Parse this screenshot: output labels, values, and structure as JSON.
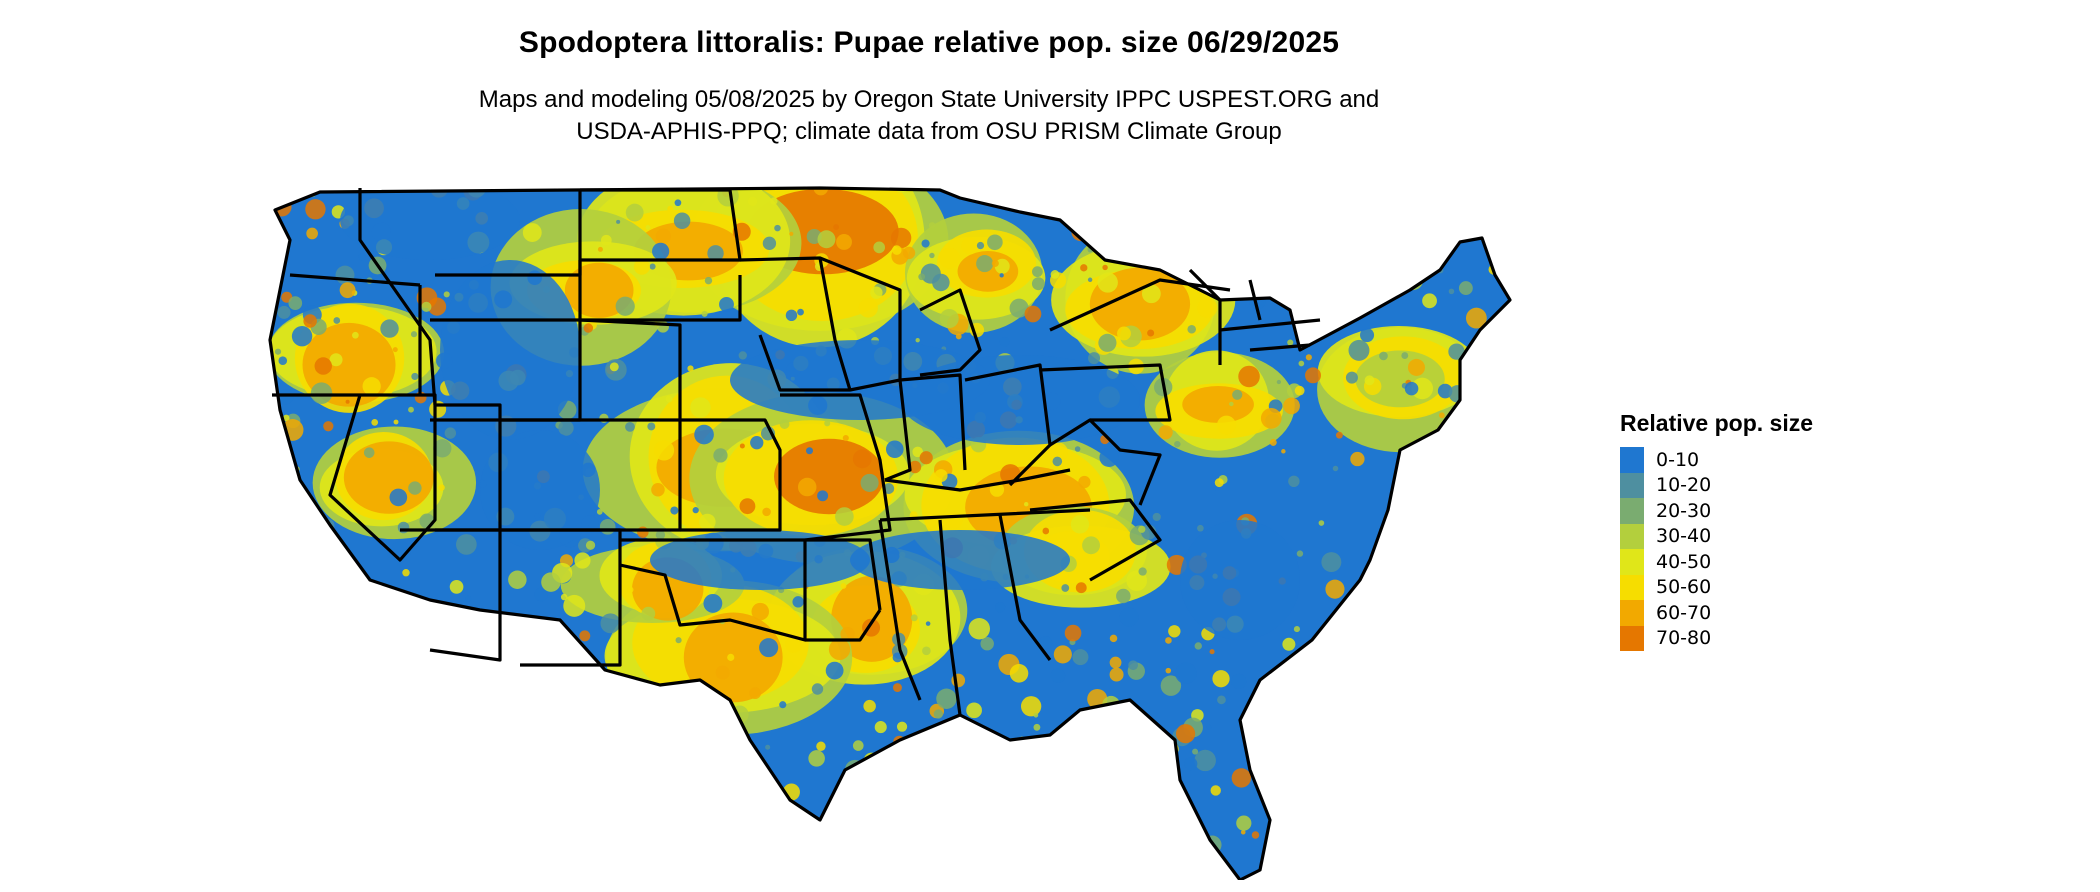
{
  "title": "Spodoptera littoralis: Pupae relative pop. size 06/29/2025",
  "subtitle_lines": [
    "Maps and modeling 05/08/2025 by Oregon State University IPPC USPEST.ORG and",
    "USDA-APHIS-PPQ; climate data from OSU PRISM Climate Group"
  ],
  "legend": {
    "title": "Relative pop. size",
    "items": [
      {
        "label": "0-10",
        "color": "#1f77d0"
      },
      {
        "label": "10-20",
        "color": "#4e8fa0"
      },
      {
        "label": "20-30",
        "color": "#7aac70"
      },
      {
        "label": "30-40",
        "color": "#b3cf3d"
      },
      {
        "label": "40-50",
        "color": "#e0e619"
      },
      {
        "label": "50-60",
        "color": "#f6dd00"
      },
      {
        "label": "60-70",
        "color": "#f2a900"
      },
      {
        "label": "70-80",
        "color": "#e57700"
      }
    ]
  },
  "map": {
    "region": "contiguous-united-states",
    "boundaries": "state-borders",
    "border_color": "#000000",
    "water_color": "#ffffff"
  }
}
